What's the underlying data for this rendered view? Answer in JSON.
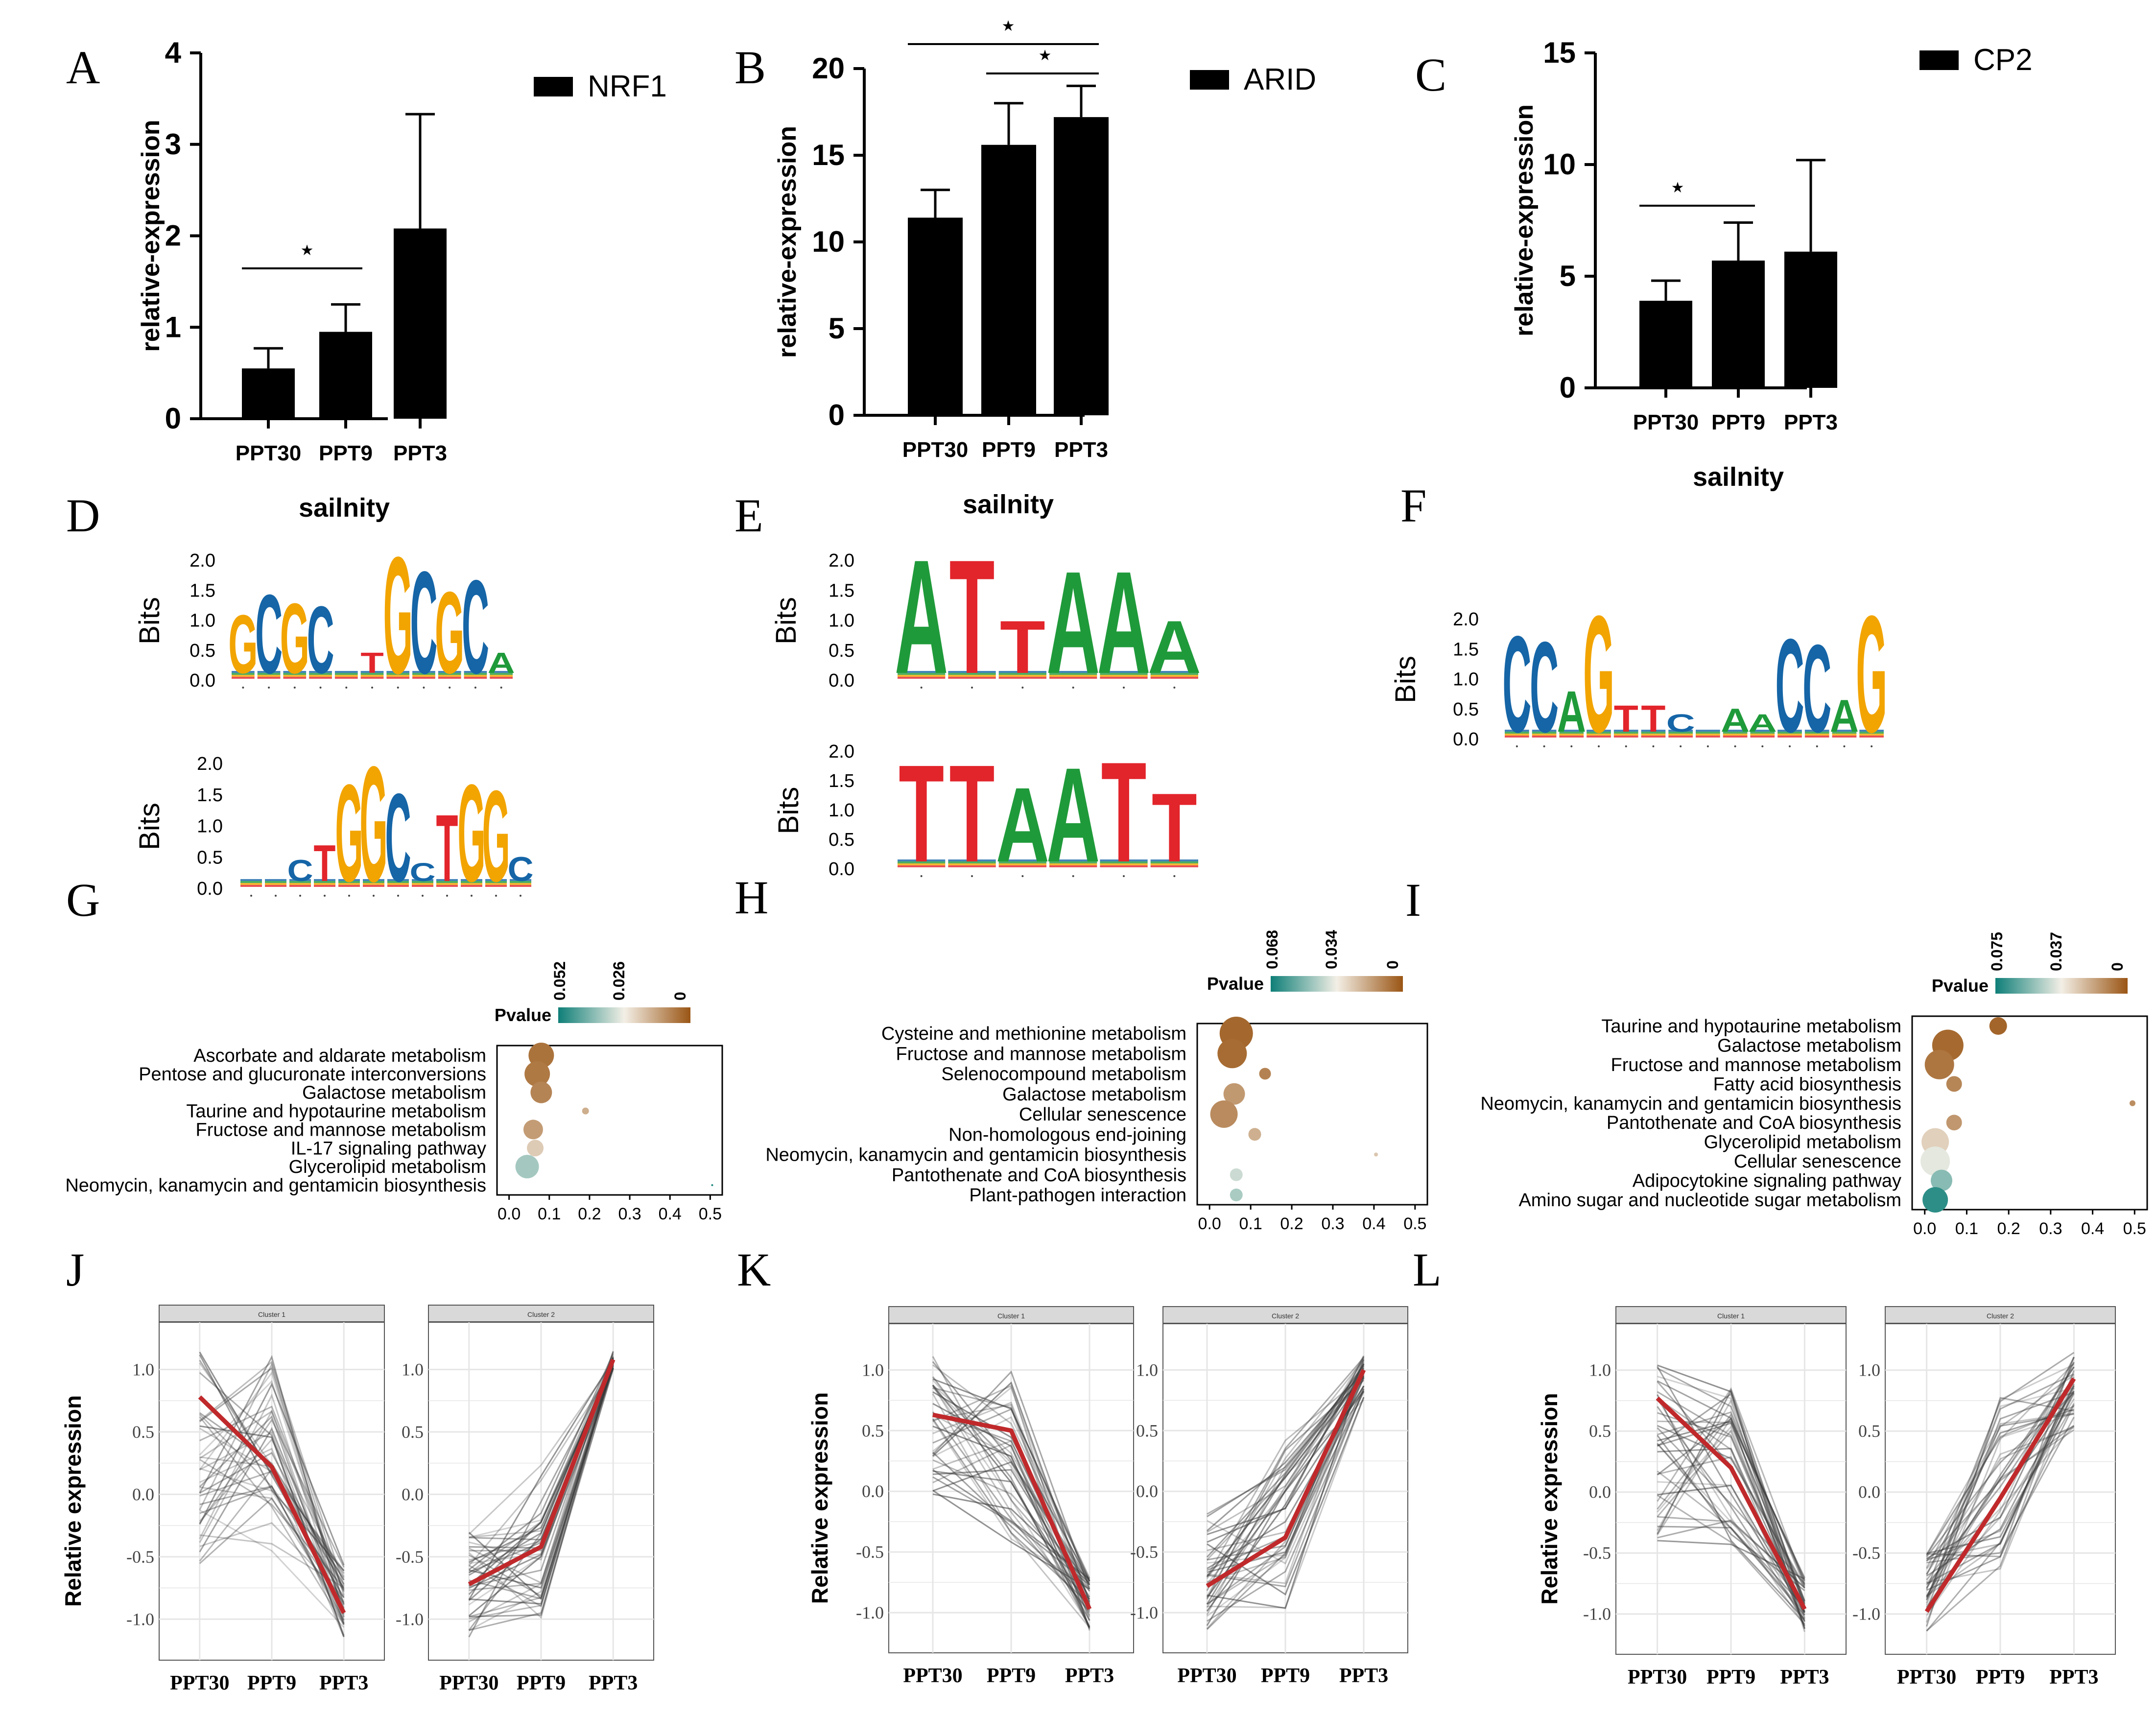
{
  "colors": {
    "bar": "#000000",
    "cluster_mean": "#c0292b",
    "cluster_line": "#3a3a3a",
    "strip": "#d9d9d9",
    "grid": "#e6e6e6",
    "motif_A": "#1f9a3a",
    "motif_C": "#1565a7",
    "motif_G": "#f2a400",
    "motif_T": "#e2242b",
    "pvalue_low": "#0e7f78",
    "pvalue_mid": "#f3efe6",
    "pvalue_high": "#9a5514"
  },
  "chart_data": [
    {
      "panel": "A",
      "type": "bar",
      "legend": "NRF1",
      "categories": [
        "PPT30",
        "PPT9",
        "PPT3"
      ],
      "values": [
        0.55,
        0.95,
        2.08
      ],
      "errors": [
        0.22,
        0.3,
        1.25
      ],
      "xlabel": "sailnity",
      "ylabel": "relative-expression",
      "ylim": [
        0,
        4
      ],
      "yticks": [
        "0",
        "1",
        "2",
        "3",
        "4"
      ],
      "significance": [
        {
          "from": 0,
          "to": 1,
          "mark": "⋆"
        }
      ]
    },
    {
      "panel": "B",
      "type": "bar",
      "legend": "ARID",
      "categories": [
        "PPT30",
        "PPT9",
        "PPT3"
      ],
      "values": [
        11.4,
        15.6,
        17.2
      ],
      "errors": [
        1.6,
        2.4,
        1.8
      ],
      "xlabel": "sailnity",
      "ylabel": "relative-expression",
      "ylim": [
        0,
        20
      ],
      "yticks": [
        "0",
        "5",
        "10",
        "15",
        "20"
      ],
      "significance": [
        {
          "from": 0,
          "to": 2,
          "mark": "⋆"
        },
        {
          "from": 1,
          "to": 2,
          "mark": "⋆"
        }
      ]
    },
    {
      "panel": "C",
      "type": "bar",
      "legend": "CP2",
      "categories": [
        "PPT30",
        "PPT9",
        "PPT3"
      ],
      "values": [
        3.9,
        5.7,
        6.1
      ],
      "errors": [
        0.9,
        1.7,
        4.1
      ],
      "xlabel": "sailnity",
      "ylabel": "relative-expression",
      "ylim": [
        0,
        15
      ],
      "yticks": [
        "0",
        "5",
        "10",
        "15"
      ],
      "significance": [
        {
          "from": 0,
          "to": 1,
          "mark": "⋆"
        }
      ]
    },
    {
      "panel": "D",
      "type": "sequence-logo",
      "ylabel": "Bits",
      "yticks": [
        "0.0",
        "0.5",
        "1.0",
        "1.5",
        "2.0"
      ],
      "logos": [
        {
          "columns": [
            [
              "G",
              1.0
            ],
            [
              "C",
              1.35
            ],
            [
              "G",
              1.2
            ],
            [
              "C",
              1.15
            ],
            [
              "",
              0.1
            ],
            [
              "T",
              0.35
            ],
            [
              "G",
              2.0
            ],
            [
              "C",
              1.75
            ],
            [
              "G",
              1.4
            ],
            [
              "C",
              1.6
            ],
            [
              "A",
              0.35
            ]
          ]
        },
        {
          "columns": [
            [
              "",
              0.05
            ],
            [
              "",
              0.05
            ],
            [
              "C",
              0.35
            ],
            [
              "T",
              0.6
            ],
            [
              "G",
              1.6
            ],
            [
              "G",
              1.9
            ],
            [
              "C",
              1.45
            ],
            [
              "C",
              0.3
            ],
            [
              "T",
              1.1
            ],
            [
              "G",
              1.6
            ],
            [
              "G",
              1.5
            ],
            [
              "C",
              0.4
            ]
          ]
        }
      ]
    },
    {
      "panel": "E",
      "type": "sequence-logo",
      "ylabel": "Bits",
      "yticks": [
        "0.0",
        "0.5",
        "1.0",
        "1.5",
        "2.0"
      ],
      "logos": [
        {
          "columns": [
            [
              "A",
              1.95
            ],
            [
              "T",
              1.95
            ],
            [
              "T",
              0.9
            ],
            [
              "A",
              1.75
            ],
            [
              "A",
              1.75
            ],
            [
              "A",
              0.9
            ]
          ]
        },
        {
          "columns": [
            [
              "T",
              1.7
            ],
            [
              "T",
              1.7
            ],
            [
              "A",
              1.3
            ],
            [
              "A",
              1.65
            ],
            [
              "T",
              1.75
            ],
            [
              "T",
              1.2
            ]
          ]
        }
      ]
    },
    {
      "panel": "F",
      "type": "sequence-logo",
      "ylabel": "Bits",
      "yticks": [
        "0.0",
        "0.5",
        "1.0",
        "1.5",
        "2.0"
      ],
      "logos": [
        {
          "columns": [
            [
              "C",
              1.65
            ],
            [
              "C",
              1.55
            ],
            [
              "A",
              0.7
            ],
            [
              "G",
              2.0
            ],
            [
              "T",
              0.45
            ],
            [
              "T",
              0.45
            ],
            [
              "C",
              0.3
            ],
            [
              "",
              0.05
            ],
            [
              "A",
              0.4
            ],
            [
              "A",
              0.3
            ],
            [
              "C",
              1.6
            ],
            [
              "C",
              1.5
            ],
            [
              "A",
              0.55
            ],
            [
              "G",
              2.0
            ]
          ]
        }
      ]
    },
    {
      "panel": "G",
      "type": "scatter",
      "categories": [
        "Ascorbate and aldarate metabolism",
        "Pentose and glucuronate interconversions",
        "Galactose metabolism",
        "Taurine and hypotaurine metabolism",
        "Fructose and mannose metabolism",
        "IL-17 signaling pathway",
        "Glycerolipid metabolism",
        "Neomycin, kanamycin and gentamicin biosynthesis"
      ],
      "x": [
        0.08,
        0.07,
        0.08,
        0.19,
        0.06,
        0.065,
        0.045,
        0.505
      ],
      "size": [
        26,
        26,
        22,
        7,
        20,
        17,
        24,
        2
      ],
      "pvalue": [
        0.005,
        0.006,
        0.008,
        0.015,
        0.012,
        0.02,
        0.035,
        0.05
      ],
      "xticks": [
        "0.0",
        "0.1",
        "0.2",
        "0.3",
        "0.4",
        "0.5"
      ],
      "xlim": [
        -0.03,
        0.53
      ],
      "legend_title": "Pvalue",
      "legend_ticks": [
        "0.052",
        "0.026",
        "0"
      ],
      "legend_range": [
        0.052,
        0
      ]
    },
    {
      "panel": "H",
      "type": "scatter",
      "categories": [
        "Cysteine and methionine metabolism",
        "Fructose and mannose metabolism",
        "Selenocompound metabolism",
        "Galactose metabolism",
        "Cellular senescence",
        "Non-homologous end-joining",
        "Neomycin, kanamycin and gentamicin biosynthesis",
        "Pantothenate and CoA biosynthesis",
        "Plant-pathogen interaction"
      ],
      "x": [
        0.065,
        0.055,
        0.135,
        0.06,
        0.035,
        0.11,
        0.405,
        0.065,
        0.065
      ],
      "size": [
        34,
        30,
        12,
        22,
        28,
        13,
        4,
        13,
        13
      ],
      "pvalue": [
        0.004,
        0.005,
        0.01,
        0.015,
        0.012,
        0.02,
        0.025,
        0.04,
        0.045
      ],
      "xticks": [
        "0.0",
        "0.1",
        "0.2",
        "0.3",
        "0.4",
        "0.5"
      ],
      "xlim": [
        -0.03,
        0.53
      ],
      "legend_title": "Pvalue",
      "legend_ticks": [
        "0.068",
        "0.034",
        "0"
      ],
      "legend_range": [
        0.068,
        0
      ]
    },
    {
      "panel": "I",
      "type": "scatter",
      "categories": [
        "Taurine and hypotaurine metabolism",
        "Galactose metabolism",
        "Fructose and mannose metabolism",
        "Fatty acid biosynthesis",
        "Neomycin, kanamycin and gentamicin biosynthesis",
        "Pantothenate and CoA biosynthesis",
        "Glycerolipid metabolism",
        "Cellular senescence",
        "Adipocytokine signaling pathway",
        "Amino sugar and nucleotide sugar metabolism"
      ],
      "x": [
        0.175,
        0.055,
        0.035,
        0.07,
        0.495,
        0.07,
        0.025,
        0.025,
        0.04,
        0.025
      ],
      "size": [
        18,
        32,
        30,
        16,
        6,
        16,
        28,
        30,
        22,
        26
      ],
      "pvalue": [
        0.004,
        0.005,
        0.008,
        0.012,
        0.014,
        0.016,
        0.03,
        0.04,
        0.055,
        0.07
      ],
      "xticks": [
        "0.0",
        "0.1",
        "0.2",
        "0.3",
        "0.4",
        "0.5"
      ],
      "xlim": [
        -0.03,
        0.53
      ],
      "legend_title": "Pvalue",
      "legend_ticks": [
        "0.075",
        "0.037",
        "0"
      ],
      "legend_range": [
        0.075,
        0
      ]
    },
    {
      "panel": "J",
      "type": "line",
      "ylabel": "Relative expression",
      "categories": [
        "PPT30",
        "PPT9",
        "PPT3"
      ],
      "yticks": [
        "1.0",
        "0.5",
        "0.0",
        "-0.5",
        "-1.0"
      ],
      "ylim": [
        -1.25,
        1.3
      ],
      "clusters": [
        {
          "title": "Cluster 1",
          "mean": [
            0.78,
            0.22,
            -0.95
          ],
          "start_range": [
            -0.58,
            1.15
          ],
          "mid_range": [
            -0.5,
            1.15
          ],
          "end_range": [
            -1.15,
            -0.55
          ]
        },
        {
          "title": "Cluster 2",
          "mean": [
            -0.72,
            -0.42,
            1.08
          ],
          "start_range": [
            -1.15,
            -0.3
          ],
          "mid_range": [
            -1.0,
            0.25
          ],
          "end_range": [
            1.0,
            1.15
          ]
        }
      ]
    },
    {
      "panel": "K",
      "type": "line",
      "ylabel": "Relative expression",
      "categories": [
        "PPT30",
        "PPT9",
        "PPT3"
      ],
      "yticks": [
        "1.0",
        "0.5",
        "0.0",
        "-0.5",
        "-1.0"
      ],
      "ylim": [
        -1.25,
        1.3
      ],
      "clusters": [
        {
          "title": "Cluster 1",
          "mean": [
            0.63,
            0.5,
            -0.97
          ],
          "start_range": [
            -0.05,
            1.12
          ],
          "mid_range": [
            -0.5,
            1.0
          ],
          "end_range": [
            -1.15,
            -0.7
          ]
        },
        {
          "title": "Cluster 2",
          "mean": [
            -0.78,
            -0.38,
            1.0
          ],
          "start_range": [
            -1.15,
            -0.15
          ],
          "mid_range": [
            -1.0,
            0.5
          ],
          "end_range": [
            0.7,
            1.12
          ]
        }
      ]
    },
    {
      "panel": "L",
      "type": "line",
      "ylabel": "Relative expression",
      "categories": [
        "PPT30",
        "PPT9",
        "PPT3"
      ],
      "yticks": [
        "1.0",
        "0.5",
        "0.0",
        "-0.5",
        "-1.0"
      ],
      "ylim": [
        -1.25,
        1.3
      ],
      "clusters": [
        {
          "title": "Cluster 1",
          "mean": [
            0.77,
            0.2,
            -0.96
          ],
          "start_range": [
            -0.4,
            1.05
          ],
          "mid_range": [
            -0.5,
            0.85
          ],
          "end_range": [
            -1.15,
            -0.7
          ]
        },
        {
          "title": "Cluster 2",
          "mean": [
            -0.98,
            -0.05,
            0.93
          ],
          "start_range": [
            -1.15,
            -0.5
          ],
          "mid_range": [
            -0.65,
            0.8
          ],
          "end_range": [
            0.5,
            1.15
          ]
        }
      ]
    }
  ]
}
